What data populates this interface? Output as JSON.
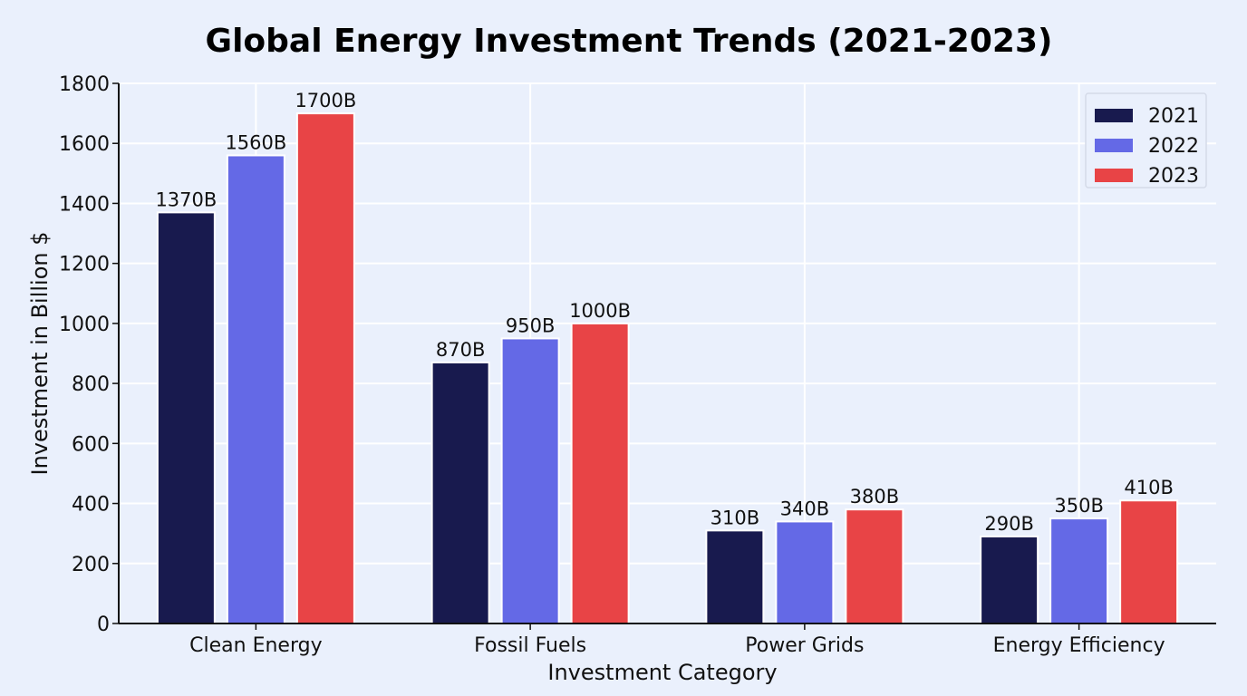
{
  "chart_data": {
    "type": "bar",
    "title": "Global Energy Investment Trends (2021-2023)",
    "xlabel": "Investment Category",
    "ylabel": "Investment in Billion $",
    "categories": [
      "Clean Energy",
      "Fossil Fuels",
      "Power Grids",
      "Energy Efficiency"
    ],
    "series": [
      {
        "name": "2021",
        "color": "#181a4e",
        "values": [
          1370,
          870,
          310,
          290
        ],
        "labels": [
          "1370B",
          "870B",
          "310B",
          "290B"
        ]
      },
      {
        "name": "2022",
        "color": "#6469e6",
        "values": [
          1560,
          950,
          340,
          350
        ],
        "labels": [
          "1560B",
          "950B",
          "340B",
          "350B"
        ]
      },
      {
        "name": "2023",
        "color": "#e84446",
        "values": [
          1700,
          1000,
          380,
          410
        ],
        "labels": [
          "1700B",
          "1000B",
          "380B",
          "410B"
        ]
      }
    ],
    "ylim": [
      0,
      1800
    ],
    "yticks": [
      0,
      200,
      400,
      600,
      800,
      1000,
      1200,
      1400,
      1600,
      1800
    ],
    "grid": true,
    "legend_position": "top-right"
  }
}
